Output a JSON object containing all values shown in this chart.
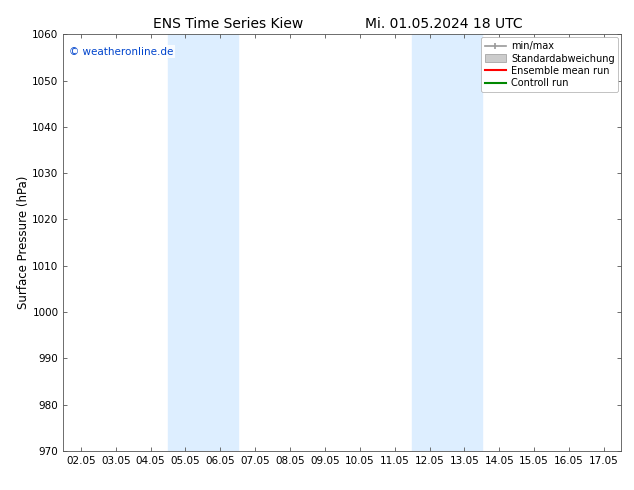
{
  "title_left": "ENS Time Series Kiew",
  "title_right": "Mi. 01.05.2024 18 UTC",
  "ylabel": "Surface Pressure (hPa)",
  "ylim": [
    970,
    1060
  ],
  "yticks": [
    970,
    980,
    990,
    1000,
    1010,
    1020,
    1030,
    1040,
    1050,
    1060
  ],
  "xtick_labels": [
    "02.05",
    "03.05",
    "04.05",
    "05.05",
    "06.05",
    "07.05",
    "08.05",
    "09.05",
    "10.05",
    "11.05",
    "12.05",
    "13.05",
    "14.05",
    "15.05",
    "16.05",
    "17.05"
  ],
  "shaded_regions": [
    {
      "xstart": 3,
      "xend": 5,
      "color": "#ddeeff"
    },
    {
      "xstart": 10,
      "xend": 12,
      "color": "#ddeeff"
    }
  ],
  "legend_labels": [
    "min/max",
    "Standardabweichung",
    "Ensemble mean run",
    "Controll run"
  ],
  "copyright_text": "© weatheronline.de",
  "copyright_color": "#0044cc",
  "background_color": "#ffffff",
  "title_fontsize": 10,
  "tick_fontsize": 7.5,
  "ylabel_fontsize": 8.5
}
